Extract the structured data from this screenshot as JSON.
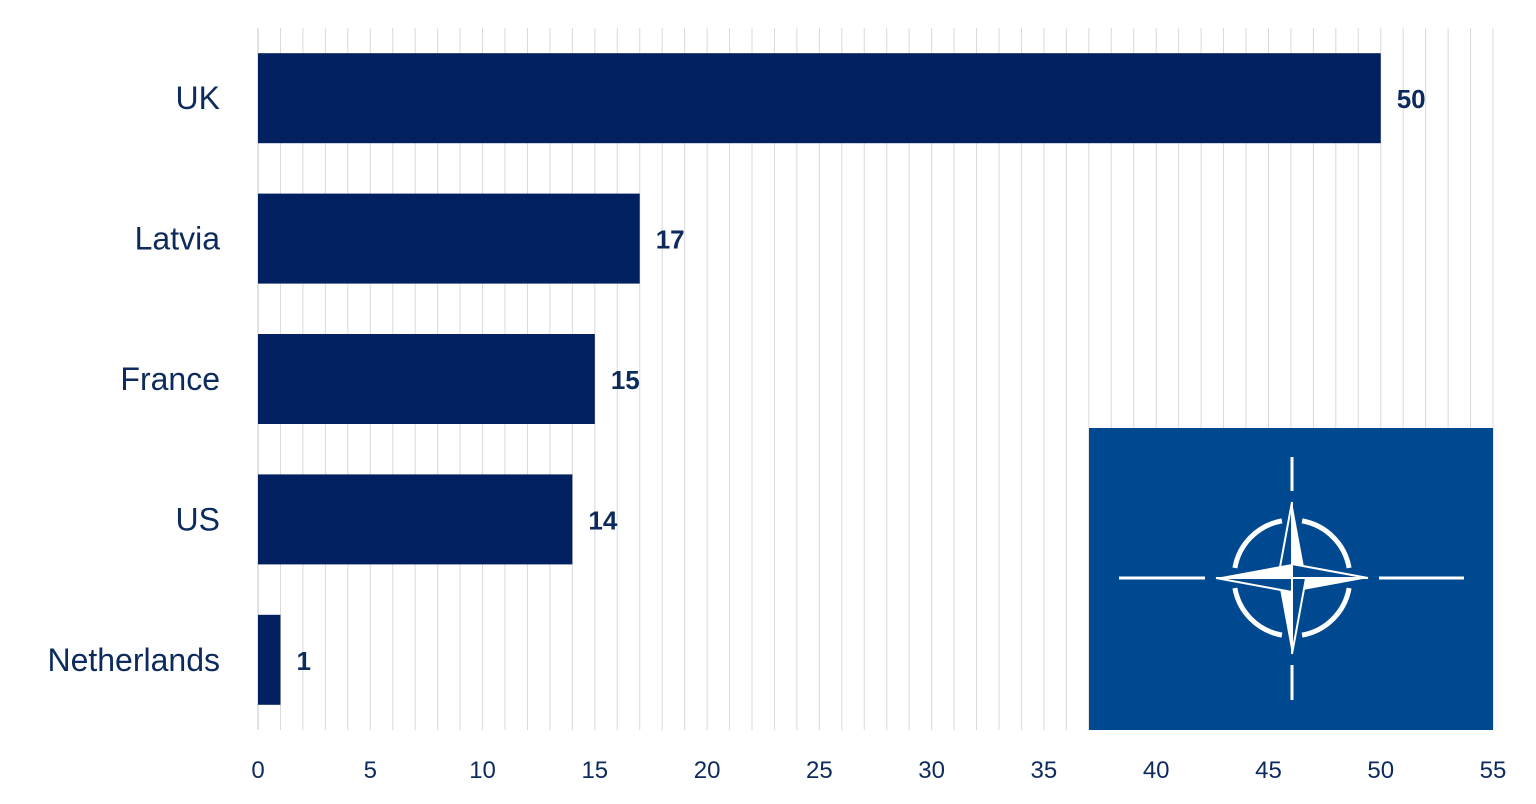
{
  "chart_data": {
    "type": "bar",
    "orientation": "horizontal",
    "categories": [
      "UK",
      "Latvia",
      "France",
      "US",
      "Netherlands"
    ],
    "values": [
      50,
      17,
      15,
      14,
      1
    ],
    "xlim": [
      0,
      55
    ],
    "x_ticks": [
      "0",
      "5",
      "10",
      "15",
      "20",
      "25",
      "30",
      "35",
      "40",
      "45",
      "50",
      "55"
    ],
    "data_labels": [
      "50",
      "17",
      "15",
      "14",
      "1"
    ],
    "grid": true,
    "legend": "none",
    "title": "",
    "xlabel": "",
    "ylabel": ""
  },
  "colors": {
    "bar": "#002060",
    "text": "#0c2a5c",
    "grid": "#d9d9d9",
    "flag_background": "#004990",
    "flag_emblem": "#ffffff"
  },
  "inset": {
    "icon": "nato-flag-icon"
  }
}
